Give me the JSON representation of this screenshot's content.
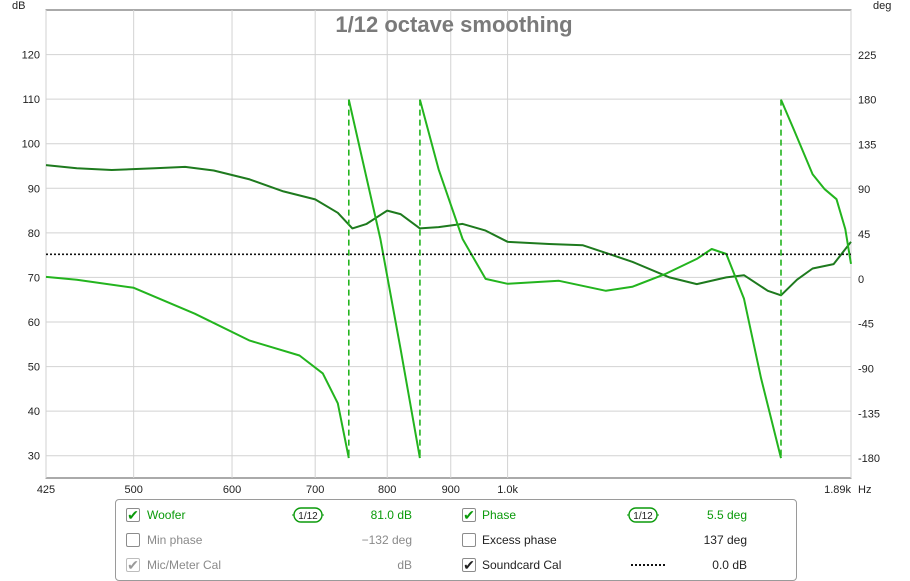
{
  "chart_data": {
    "type": "line",
    "title": "1/12 octave smoothing",
    "left_axis": {
      "unit": "dB",
      "ylim": [
        25,
        130
      ],
      "ticks": [
        30,
        40,
        50,
        60,
        70,
        80,
        90,
        100,
        110,
        120
      ]
    },
    "right_axis": {
      "unit": "deg",
      "ylim": [
        -200,
        270
      ],
      "ticks": [
        "225",
        "180",
        "135",
        "90",
        "45",
        "0",
        "-45",
        "-90",
        "-135",
        "-180"
      ]
    },
    "x_axis": {
      "unit": "Hz",
      "scale": "log",
      "xlim": [
        425,
        1890
      ],
      "ticks": [
        [
          425,
          "425"
        ],
        [
          500,
          "500"
        ],
        [
          600,
          "600"
        ],
        [
          700,
          "700"
        ],
        [
          800,
          "800"
        ],
        [
          900,
          "900"
        ],
        [
          1000,
          "1.0k"
        ],
        [
          1890,
          "1.89k"
        ]
      ]
    },
    "grid": true,
    "series": [
      {
        "name": "Woofer",
        "axis": "left",
        "color": "#1e7a1e",
        "points": [
          [
            425,
            95.2
          ],
          [
            450,
            94.5
          ],
          [
            480,
            94.1
          ],
          [
            520,
            94.5
          ],
          [
            550,
            94.8
          ],
          [
            580,
            94.0
          ],
          [
            620,
            92.0
          ],
          [
            660,
            89.3
          ],
          [
            700,
            87.5
          ],
          [
            730,
            84.5
          ],
          [
            750,
            81.0
          ],
          [
            770,
            82.0
          ],
          [
            800,
            85.0
          ],
          [
            820,
            84.2
          ],
          [
            850,
            81.0
          ],
          [
            880,
            81.3
          ],
          [
            920,
            82.0
          ],
          [
            960,
            80.5
          ],
          [
            1000,
            78.0
          ],
          [
            1080,
            77.5
          ],
          [
            1150,
            77.2
          ],
          [
            1200,
            75.5
          ],
          [
            1260,
            73.5
          ],
          [
            1350,
            70.0
          ],
          [
            1420,
            68.5
          ],
          [
            1500,
            70.0
          ],
          [
            1550,
            70.5
          ],
          [
            1620,
            67.0
          ],
          [
            1660,
            66.0
          ],
          [
            1710,
            69.5
          ],
          [
            1760,
            72.0
          ],
          [
            1830,
            73.0
          ],
          [
            1860,
            75.5
          ],
          [
            1890,
            78.0
          ]
        ]
      },
      {
        "name": "Phase",
        "axis": "right",
        "color": "#23b41e",
        "segments": [
          [
            [
              425,
              2
            ],
            [
              450,
              -1
            ],
            [
              500,
              -9
            ],
            [
              560,
              -35
            ],
            [
              620,
              -62
            ],
            [
              680,
              -77
            ],
            [
              710,
              -95
            ],
            [
              730,
              -125
            ],
            [
              745,
              -180
            ]
          ],
          [
            [
              745,
              180
            ],
            [
              790,
              40
            ],
            [
              820,
              -70
            ],
            [
              850,
              -180
            ]
          ],
          [
            [
              850,
              180
            ],
            [
              880,
              110
            ],
            [
              920,
              40
            ],
            [
              960,
              0
            ],
            [
              1000,
              -5
            ],
            [
              1100,
              -2
            ],
            [
              1200,
              -12
            ],
            [
              1260,
              -8
            ],
            [
              1340,
              5
            ],
            [
              1420,
              20
            ],
            [
              1460,
              30
            ],
            [
              1500,
              25
            ],
            [
              1550,
              -20
            ],
            [
              1600,
              -100
            ],
            [
              1660,
              -180
            ]
          ],
          [
            [
              1660,
              180
            ],
            [
              1700,
              150
            ],
            [
              1760,
              105
            ],
            [
              1800,
              90
            ],
            [
              1840,
              80
            ],
            [
              1870,
              50
            ],
            [
              1890,
              15
            ]
          ]
        ]
      },
      {
        "name": "Soundcard Cal",
        "axis": "left",
        "style": "dotted",
        "color": "#111111",
        "points": [
          [
            425,
            75.2
          ],
          [
            1890,
            75.2
          ]
        ]
      }
    ],
    "phase_wrap_lines": [
      745,
      850,
      1660
    ]
  },
  "legend": {
    "rows": [
      {
        "left": {
          "label": "Woofer",
          "checked": true,
          "smoothing": "1/12",
          "value": "81.0 dB"
        },
        "right": {
          "label": "Phase",
          "checked": true,
          "smoothing": "1/12",
          "value": "5.5 deg"
        }
      },
      {
        "left": {
          "label": "Min phase",
          "checked": false,
          "value": "−132 deg"
        },
        "right": {
          "label": "Excess phase",
          "checked": false,
          "value": "137 deg"
        }
      },
      {
        "left": {
          "label": "Mic/Meter Cal",
          "checked": true,
          "value": "dB"
        },
        "right": {
          "label": "Soundcard Cal",
          "checked": true,
          "value": "0.0 dB"
        }
      }
    ],
    "colors": {
      "active": "#0a9a0a",
      "disabled": "#8a8a8a"
    },
    "check_glyph": "✔"
  }
}
